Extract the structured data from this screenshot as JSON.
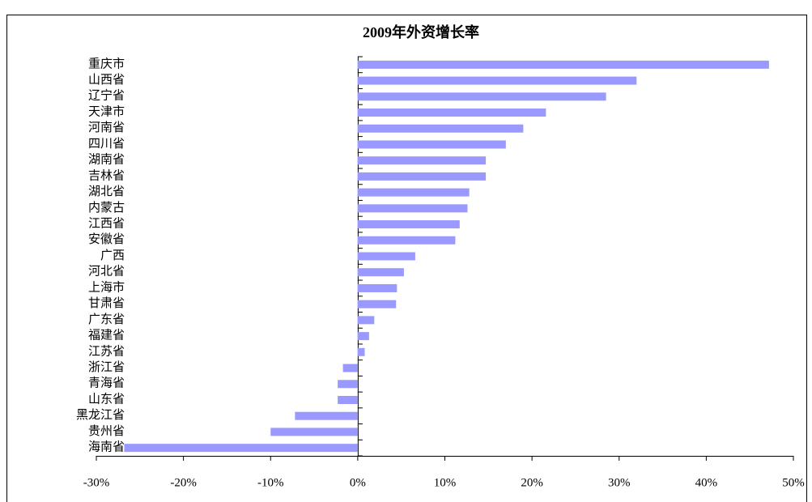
{
  "chart_data": {
    "type": "barh",
    "title": "2009年外资增长率",
    "categories": [
      "重庆市",
      "山西省",
      "辽宁省",
      "天津市",
      "河南省",
      "四川省",
      "湖南省",
      "吉林省",
      "湖北省",
      "内蒙古",
      "江西省",
      "安徽省",
      "广西",
      "河北省",
      "上海市",
      "甘肃省",
      "广东省",
      "福建省",
      "江苏省",
      "浙江省",
      "青海省",
      "山东省",
      "黑龙江省",
      "贵州省",
      "海南省"
    ],
    "values": [
      47.2,
      32.0,
      28.5,
      21.6,
      19.0,
      17.0,
      14.7,
      14.7,
      12.8,
      12.6,
      11.7,
      11.2,
      6.6,
      5.3,
      4.5,
      4.4,
      1.9,
      1.3,
      0.8,
      -1.7,
      -2.3,
      -2.3,
      -7.2,
      -10.0,
      -26.8
    ],
    "color": "#9999ff",
    "xlim": [
      -30,
      50
    ],
    "xticks": [
      {
        "value": -30,
        "label": "-30%"
      },
      {
        "value": -20,
        "label": "-20%"
      },
      {
        "value": -10,
        "label": "-10%"
      },
      {
        "value": 0,
        "label": "0%"
      },
      {
        "value": 10,
        "label": "10%"
      },
      {
        "value": 20,
        "label": "20%"
      },
      {
        "value": 30,
        "label": "30%"
      },
      {
        "value": 40,
        "label": "40%"
      },
      {
        "value": 50,
        "label": "50%"
      }
    ],
    "grid": false
  }
}
